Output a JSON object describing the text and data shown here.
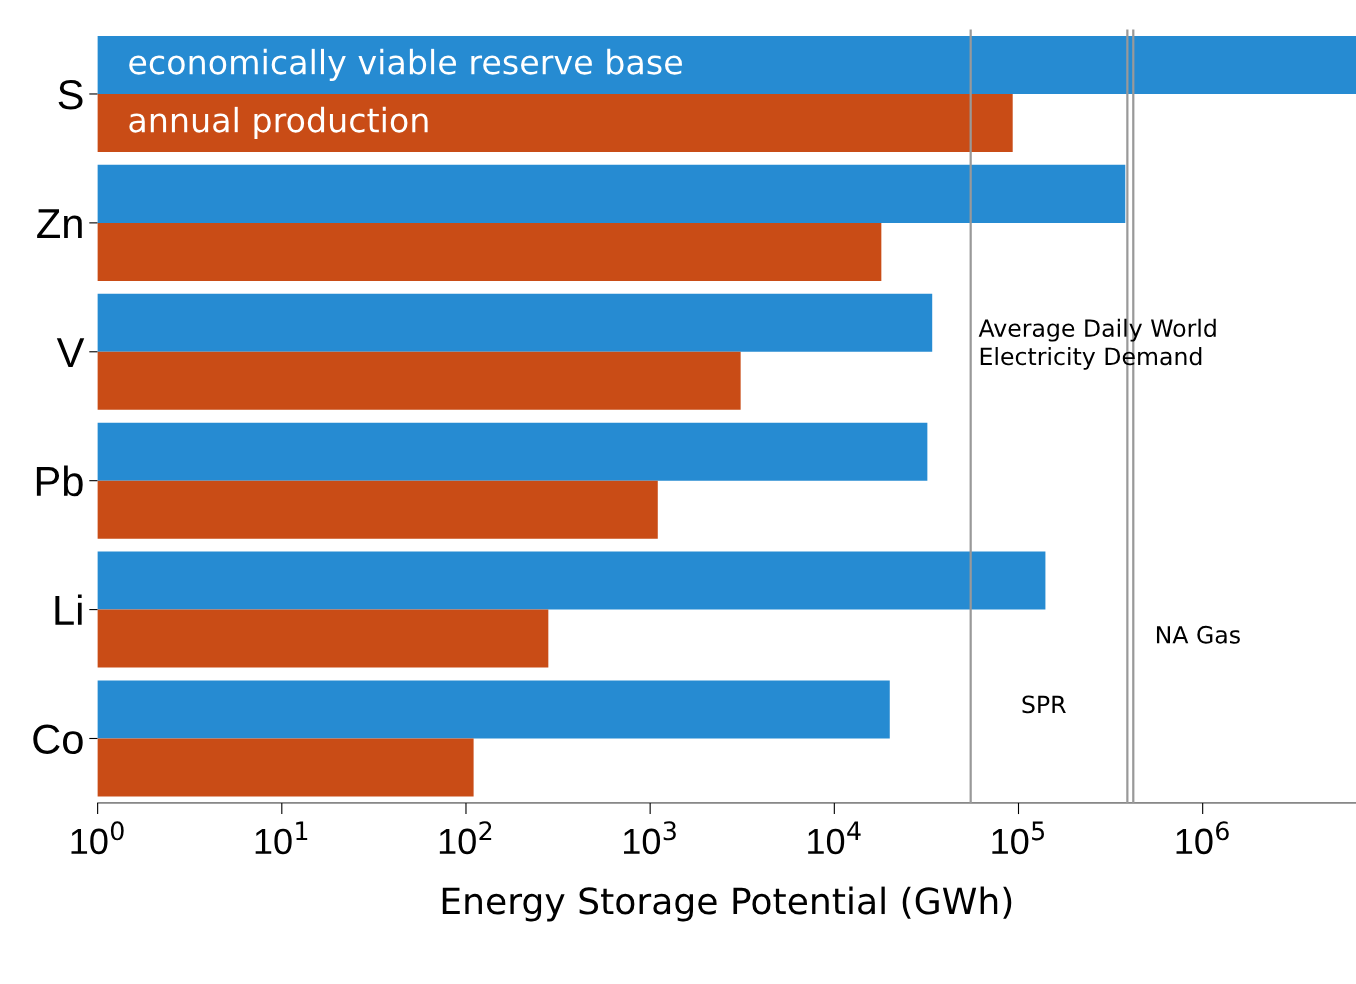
{
  "chart_data": {
    "type": "bar",
    "orientation": "horizontal",
    "xlabel": "Energy Storage Potential (GWh)",
    "categories": [
      "S",
      "Zn",
      "V",
      "Pb",
      "Li",
      "Co"
    ],
    "series": [
      {
        "name": "economically viable reserve base",
        "color": "#268bd2",
        "values": [
          6800000,
          380000,
          34000,
          32000,
          140000,
          20000
        ]
      },
      {
        "name": "annual production",
        "color": "#c94c16",
        "values": [
          93000,
          18000,
          3100,
          1100,
          280,
          110
        ]
      }
    ],
    "log": "x",
    "xlim": [
      1,
      6800000
    ],
    "xticks": [
      {
        "value": 1,
        "label": "10$^{0}$"
      },
      {
        "value": 10,
        "label": "10$^{1}$"
      },
      {
        "value": 100,
        "label": "10$^{2}$"
      },
      {
        "value": 1000,
        "label": "10$^{3}$"
      },
      {
        "value": 10000,
        "label": "10$^{4}$"
      },
      {
        "value": 100000,
        "label": "10$^{5}$"
      },
      {
        "value": 1000000,
        "label": "10$^{6}$"
      }
    ],
    "ref_lines": [
      {
        "axis": "x",
        "value": 55000,
        "label": "Average Daily World\nElectricity Demand",
        "color": "#999999"
      },
      {
        "axis": "x",
        "value": 390000,
        "label": "SPR",
        "color": "#999999"
      },
      {
        "axis": "x",
        "value": 420000,
        "label": "NA Gas",
        "color": "#999999"
      }
    ],
    "grid": false,
    "legend": false
  }
}
